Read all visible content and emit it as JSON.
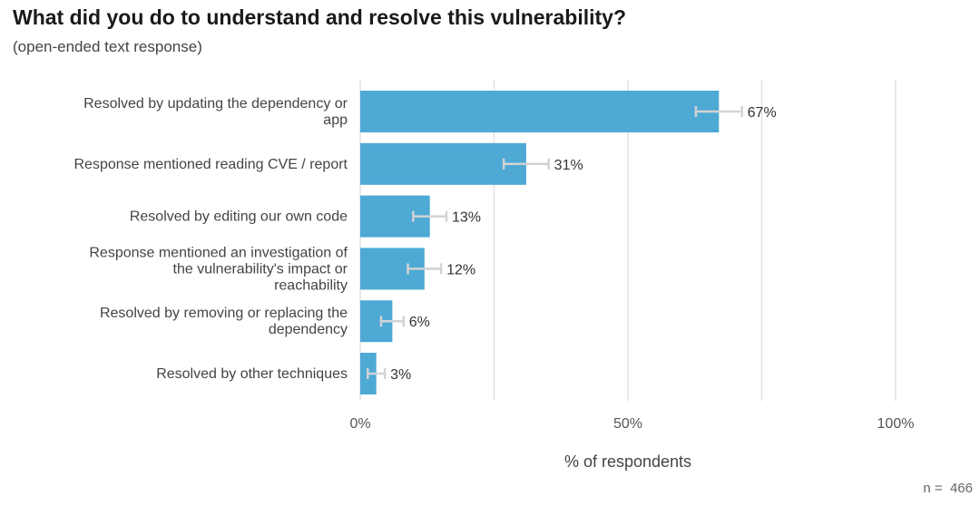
{
  "chart_data": {
    "type": "bar",
    "orientation": "horizontal",
    "title": "What did you do to understand and resolve this vulnerability?",
    "subtitle": "(open-ended text response)",
    "xlabel": "% of respondents",
    "note": "n =  466",
    "xlim": [
      0,
      100
    ],
    "xticks": [
      0,
      50,
      100
    ],
    "xtick_labels": [
      "0%",
      "50%",
      "100%"
    ],
    "grid": true,
    "bar_color": "#4ea9d5",
    "error_bar_color": "#d3d3d3",
    "categories": [
      "Resolved by updating the dependency or app",
      "Response mentioned reading CVE / report",
      "Resolved by editing our own code",
      "Response mentioned an investigation of the vulnerability's impact or reachability",
      "Resolved by removing or replacing the dependency",
      "Resolved by other techniques"
    ],
    "category_label_lines": [
      [
        "Resolved by updating the dependency or",
        "app"
      ],
      [
        "Response mentioned reading CVE / report"
      ],
      [
        "Resolved by editing our own code"
      ],
      [
        "Response mentioned an investigation of",
        "the vulnerability's impact or",
        "reachability"
      ],
      [
        "Resolved by removing or replacing the",
        "dependency"
      ],
      [
        "Resolved by other techniques"
      ]
    ],
    "values": [
      67,
      31,
      13,
      12,
      6,
      3
    ],
    "value_labels": [
      "67%",
      "31%",
      "13%",
      "12%",
      "6%",
      "3%"
    ],
    "error_low": [
      62.7,
      26.8,
      9.9,
      8.9,
      3.9,
      1.4
    ],
    "error_high": [
      71.3,
      35.2,
      16.1,
      15.1,
      8.1,
      4.6
    ]
  }
}
